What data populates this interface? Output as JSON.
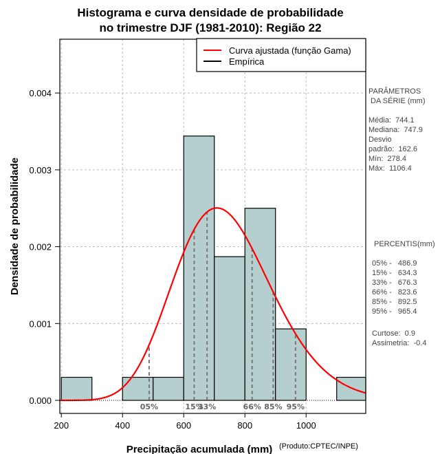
{
  "chart_data": {
    "type": "bar",
    "title": [
      "Histograma e curva densidade de probabilidade",
      "no trimestre DJF (1981-2010): Região 22"
    ],
    "xlabel": "Precipitação acumulada (mm)",
    "ylabel": "Densidade de probabilidade",
    "credit": "(Produto:CPTEC/INPE)",
    "xlim": [
      195,
      1195
    ],
    "ylim": [
      -0.00017,
      0.0047
    ],
    "x_ticks": [
      200,
      400,
      600,
      800,
      1000
    ],
    "x_tick_labels": [
      "200",
      "400",
      "600",
      "800",
      "1000"
    ],
    "y_ticks": [
      0,
      0.001,
      0.002,
      0.003,
      0.004
    ],
    "y_tick_labels": [
      "0.000",
      "0.001",
      "0.002",
      "0.003",
      "0.004"
    ],
    "grid": true,
    "histogram": {
      "bin_edges": [
        200,
        300,
        400,
        500,
        600,
        700,
        800,
        900,
        1000,
        1100,
        1200
      ],
      "density": [
        0.0003,
        0,
        0.0003,
        0.0003,
        0.00344,
        0.00187,
        0.0025,
        0.00093,
        0,
        0.0003
      ],
      "fill_color": "#b5cfcf"
    },
    "fitted_curve": {
      "name": "Curva ajustada (função Gama)",
      "distribution": "gamma",
      "mean": 744.1,
      "sd": 162.6,
      "color": "#ff0000"
    },
    "percentiles": [
      {
        "label": "05%",
        "value": 486.9
      },
      {
        "label": "15%",
        "value": 634.3
      },
      {
        "label": "33%",
        "value": 676.3
      },
      {
        "label": "66%",
        "value": 823.6
      },
      {
        "label": "85%",
        "value": 892.5
      },
      {
        "label": "95%",
        "value": 965.4
      }
    ],
    "legend": {
      "position": "top-right",
      "entries": [
        {
          "label": "Curva ajustada (função Gama)",
          "color": "#ff0000"
        },
        {
          "label": "Empírica",
          "color": "#000000"
        }
      ]
    }
  },
  "side_panel": {
    "params_title": [
      "PARÂMETROS",
      " DA SÉRIE (mm)"
    ],
    "params": [
      "Média:  744.1",
      "Mediana:  747.9",
      "Desvio",
      "padrão:  162.6",
      "Mín:  278.4",
      "Máx:  1106.4"
    ],
    "percentis_title": "PERCENTIS(mm)",
    "percentis": [
      "05% -   486.9",
      "15% -   634.3",
      "33% -   676.3",
      "66% -   823.6",
      "85% -   892.5",
      "95% -   965.4"
    ],
    "stats": [
      "Curtose:  0.9",
      "Assimetria:  -0.4"
    ]
  }
}
